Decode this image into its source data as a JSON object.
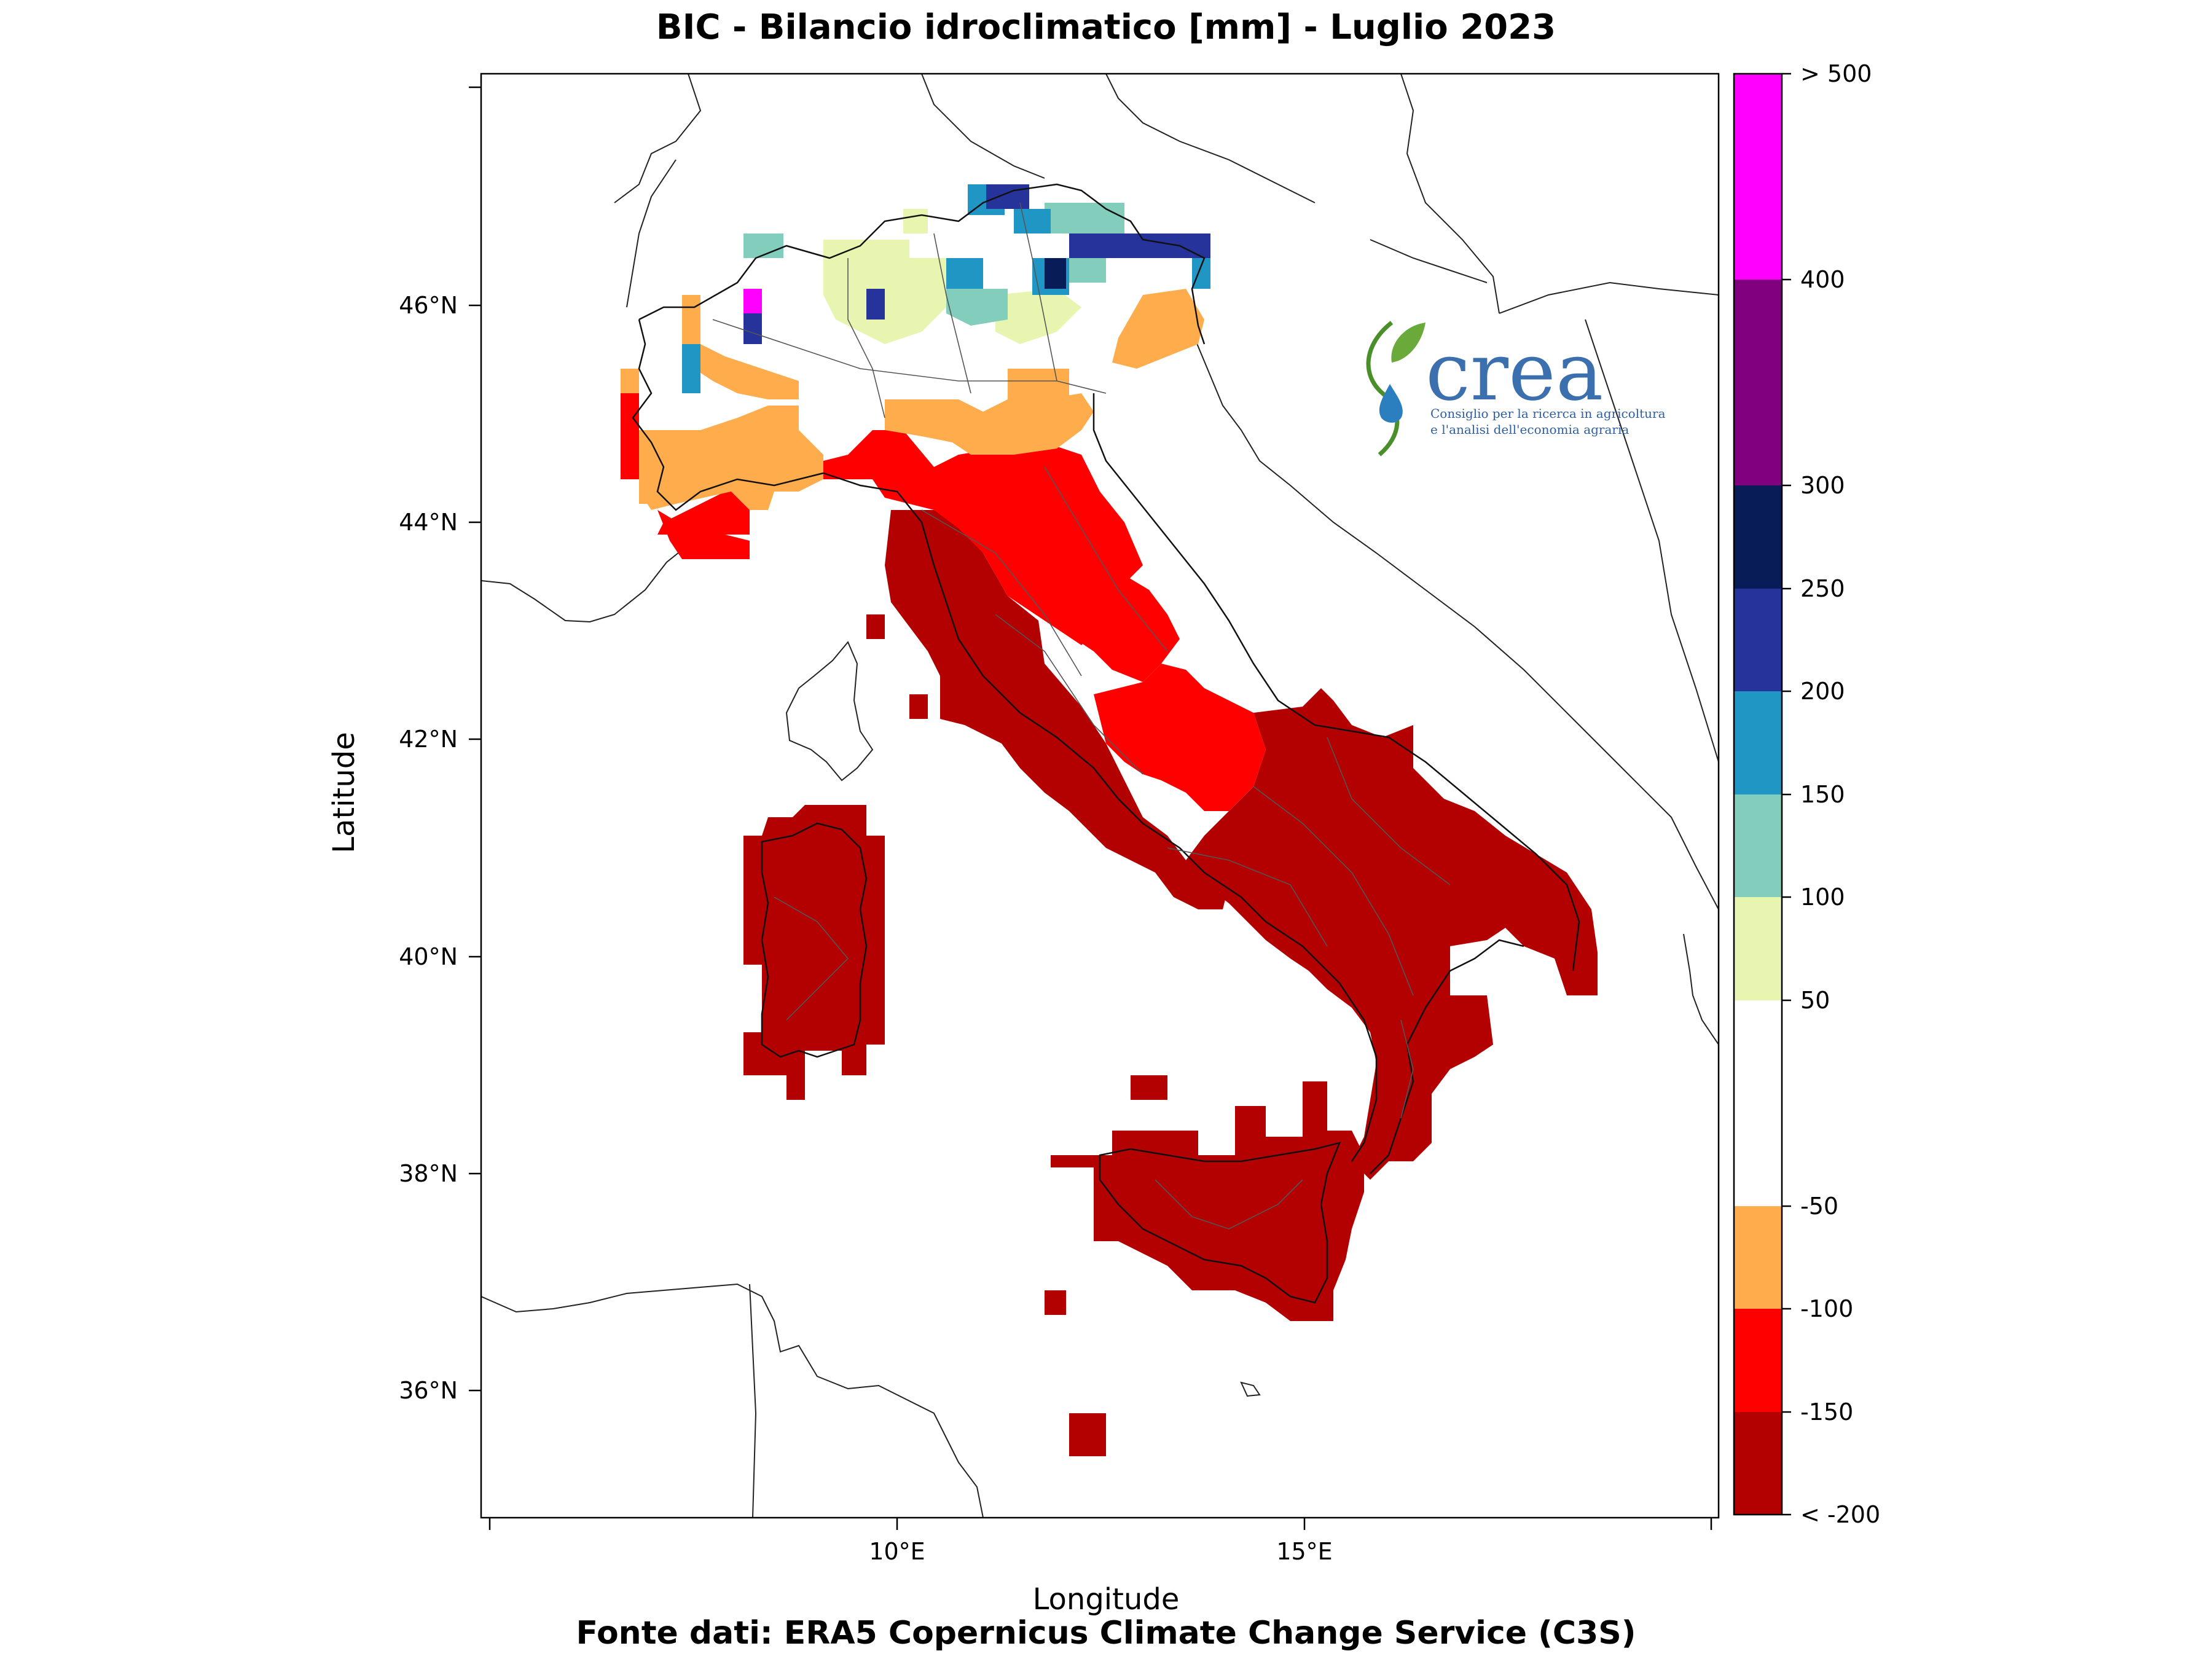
{
  "title": "BIC - Bilancio idroclimatico [mm] - Luglio 2023",
  "source": "Fonte dati: ERA5 Copernicus Climate Change Service (C3S)",
  "xlabel": "Longitude",
  "ylabel": "Latitude",
  "logo": {
    "name": "crea",
    "line1": "Consiglio per la ricerca in agricoltura",
    "line2": "e l'analisi dell'economia agraria"
  },
  "chart_data": {
    "type": "heatmap",
    "title": "BIC - Bilancio idroclimatico [mm] - Luglio 2023",
    "xlabel": "Longitude",
    "ylabel": "Latitude",
    "xticks": [
      "10°E",
      "15°E"
    ],
    "xtick_values": [
      10,
      15
    ],
    "yticks": [
      "36°N",
      "38°N",
      "40°N",
      "42°N",
      "44°N",
      "46°N"
    ],
    "ytick_values": [
      36,
      38,
      40,
      42,
      44,
      46
    ],
    "colorbar": {
      "labels": [
        "< -200",
        "-150",
        "-100",
        "-50",
        "50",
        "100",
        "150",
        "200",
        "250",
        "300",
        "400",
        "> 500"
      ],
      "bins": [
        {
          "range": "< -150",
          "color": "#b30000"
        },
        {
          "range": "-150 – -100",
          "color": "#ff0000"
        },
        {
          "range": "-100 – -50",
          "color": "#ffad4c"
        },
        {
          "range": "-50 – 50",
          "color": "#ffffff"
        },
        {
          "range": "50 – 100",
          "color": "#e8f5b0"
        },
        {
          "range": "100 – 150",
          "color": "#82cdbb"
        },
        {
          "range": "150 – 200",
          "color": "#2096c4"
        },
        {
          "range": "200 – 250",
          "color": "#25339a"
        },
        {
          "range": "250 – 300",
          "color": "#081d58"
        },
        {
          "range": "300 – 400",
          "color": "#800080"
        },
        {
          "range": "> 400",
          "color": "#ff00ff"
        }
      ]
    },
    "regions": [
      {
        "area": "Sardegna",
        "class": "< -150"
      },
      {
        "area": "Sicilia",
        "class": "< -150"
      },
      {
        "area": "Puglia, Basilicata, Calabria, Campania",
        "class": "< -150"
      },
      {
        "area": "Lazio, Toscana",
        "class": "< -150"
      },
      {
        "area": "Umbria, Marche, Abruzzo, Molise",
        "class": "-150 – -100"
      },
      {
        "area": "Liguria",
        "class": "-150 – -100"
      },
      {
        "area": "Emilia-Romagna, Piemonte sud",
        "class": "-100 – -50"
      },
      {
        "area": "Pianura Padana centrale",
        "class": "-50 – 50"
      },
      {
        "area": "Prealpi lombarde",
        "class": "50 – 100"
      },
      {
        "area": "Alpi centro-orientali",
        "class": "100 – 250"
      }
    ]
  }
}
